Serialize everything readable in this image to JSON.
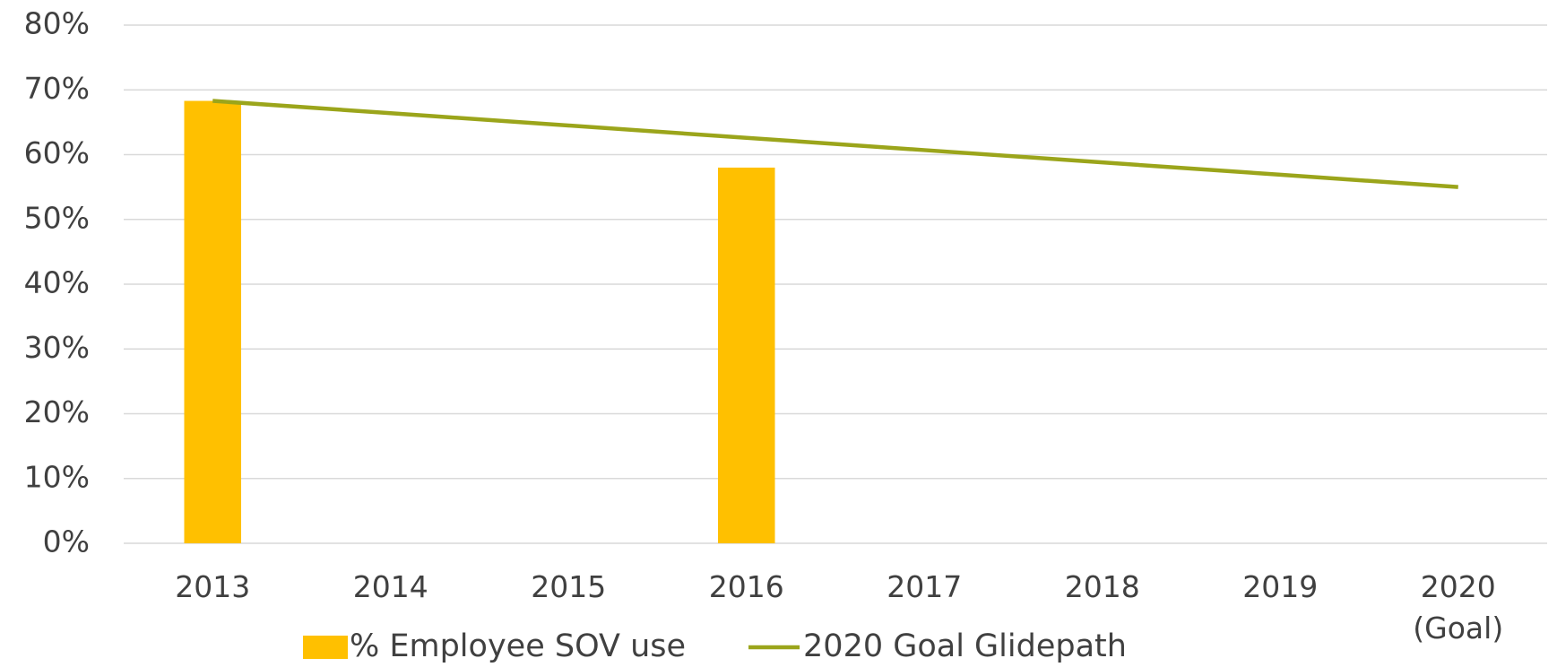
{
  "chart_data": {
    "type": "bar_line",
    "categories": [
      "2013",
      "2014",
      "2015",
      "2016",
      "2017",
      "2018",
      "2019",
      "2020\n(Goal)"
    ],
    "series": [
      {
        "name": "% Employee SOV use",
        "type": "bar",
        "color": "#FFC000",
        "values": [
          68.3,
          null,
          null,
          58,
          null,
          null,
          null,
          null
        ]
      },
      {
        "name": "2020 Goal Glidepath",
        "type": "line",
        "color": "#9BA51B",
        "values": [
          68.3,
          66.4,
          64.5,
          62.6,
          60.7,
          58.8,
          56.9,
          55
        ]
      }
    ],
    "ylim": [
      0,
      80
    ],
    "yticks": [
      {
        "value": 0,
        "label": "0%"
      },
      {
        "value": 10,
        "label": "10%"
      },
      {
        "value": 20,
        "label": "20%"
      },
      {
        "value": 30,
        "label": "30%"
      },
      {
        "value": 40,
        "label": "40%"
      },
      {
        "value": 50,
        "label": "50%"
      },
      {
        "value": 60,
        "label": "60%"
      },
      {
        "value": 70,
        "label": "70%"
      },
      {
        "value": 80,
        "label": "80%"
      }
    ],
    "grid": true,
    "legend": "bottom"
  }
}
